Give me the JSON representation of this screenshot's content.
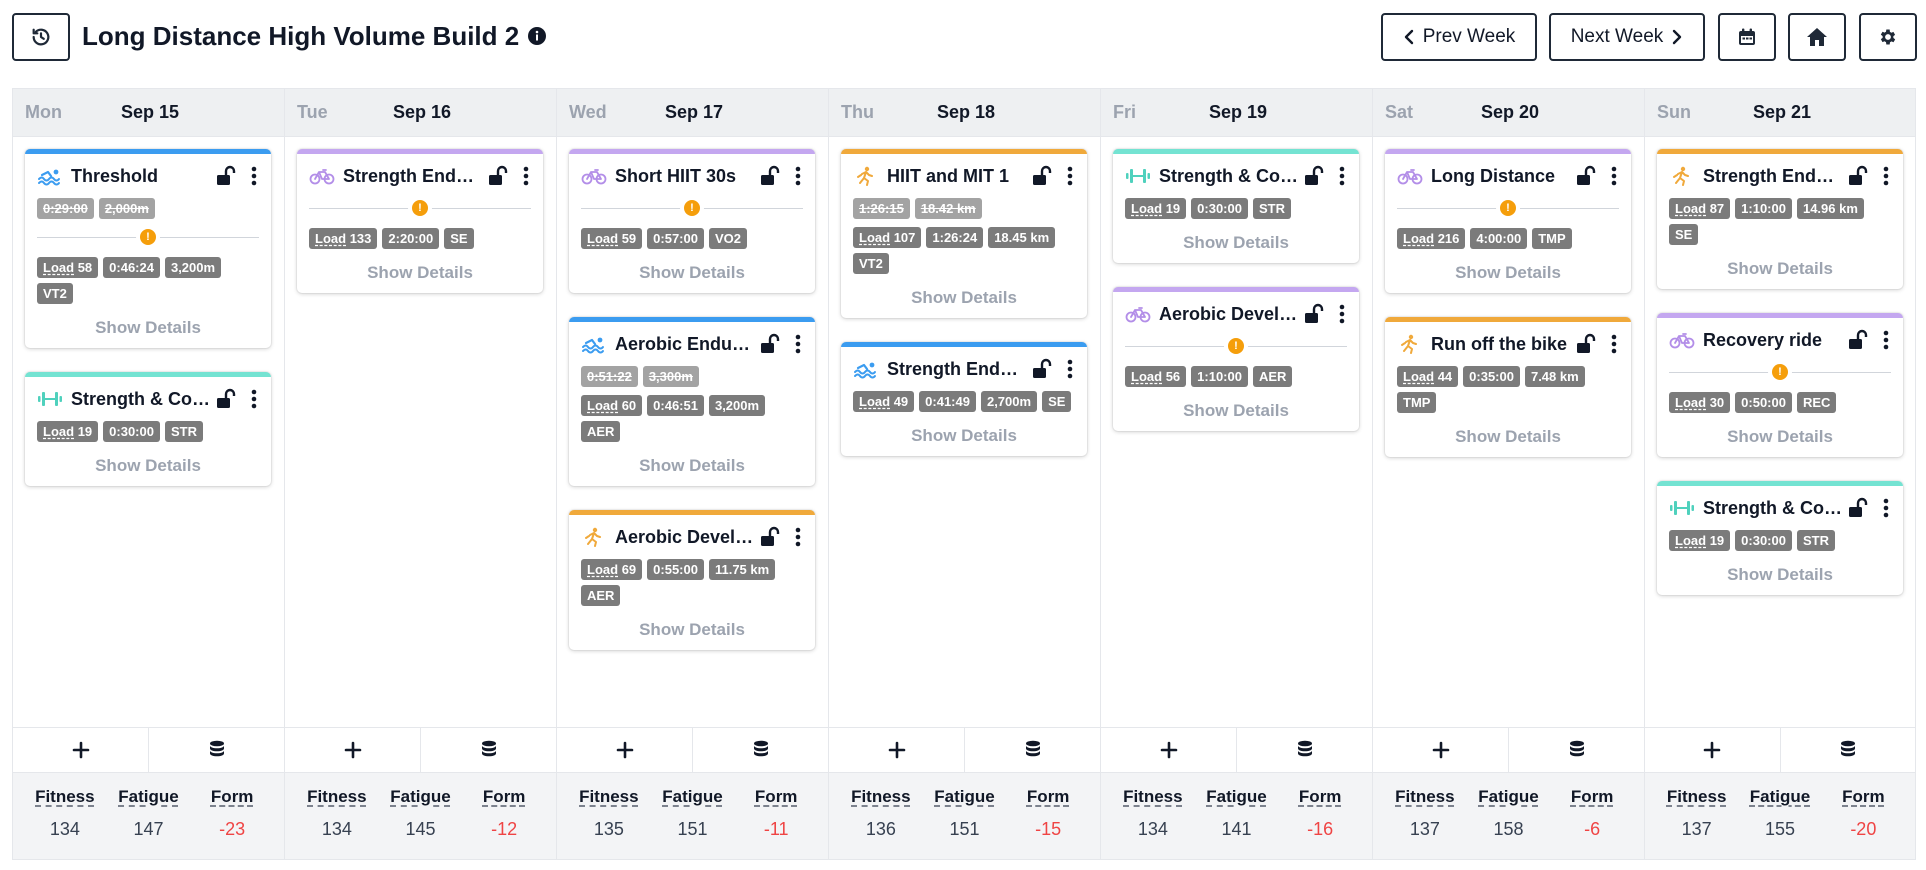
{
  "header": {
    "title": "Long Distance High Volume Build 2",
    "prev_label": "Prev Week",
    "next_label": "Next Week",
    "history_icon": "history-icon",
    "calendar_icon": "calendar-icon",
    "home_icon": "home-icon",
    "gear_icon": "gear-icon"
  },
  "colors": {
    "swim": "#3b9cf0",
    "bike": "#c4a7f0",
    "run": "#f0a93b",
    "strength": "#74e3d2",
    "negative": "#ef4444"
  },
  "labels": {
    "show_details": "Show Details",
    "fitness": "Fitness",
    "fatigue": "Fatigue",
    "form": "Form",
    "load": "Load"
  },
  "days": [
    {
      "name": "Mon",
      "date": "Sep 15",
      "fitness": "134",
      "fatigue": "147",
      "form": "-23",
      "workouts": [
        {
          "sport": "swim",
          "title": "Threshold",
          "planned": [
            "0:29:00",
            "2,000m"
          ],
          "warning": true,
          "load": "58",
          "badges": [
            "0:46:24",
            "3,200m",
            "VT2"
          ]
        },
        {
          "sport": "str",
          "title": "Strength & Conditioning",
          "planned": [],
          "warning": false,
          "load": "19",
          "badges": [
            "0:30:00",
            "STR"
          ]
        }
      ]
    },
    {
      "name": "Tue",
      "date": "Sep 16",
      "fitness": "134",
      "fatigue": "145",
      "form": "-12",
      "workouts": [
        {
          "sport": "bike",
          "title": "Strength Endurance",
          "planned": [],
          "warning": true,
          "load": "133",
          "badges": [
            "2:20:00",
            "SE"
          ]
        }
      ]
    },
    {
      "name": "Wed",
      "date": "Sep 17",
      "fitness": "135",
      "fatigue": "151",
      "form": "-11",
      "workouts": [
        {
          "sport": "bike",
          "title": "Short HIIT 30s",
          "planned": [],
          "warning": true,
          "load": "59",
          "badges": [
            "0:57:00",
            "VO2"
          ]
        },
        {
          "sport": "swim",
          "title": "Aerobic Endurance",
          "planned": [
            "0:51:22",
            "3,300m"
          ],
          "warning": false,
          "load": "60",
          "badges": [
            "0:46:51",
            "3,200m",
            "AER"
          ]
        },
        {
          "sport": "run",
          "title": "Aerobic Development",
          "planned": [],
          "warning": false,
          "load": "69",
          "badges": [
            "0:55:00",
            "11.75 km",
            "AER"
          ]
        }
      ]
    },
    {
      "name": "Thu",
      "date": "Sep 18",
      "fitness": "136",
      "fatigue": "151",
      "form": "-15",
      "workouts": [
        {
          "sport": "run",
          "title": "HIIT and MIT 1",
          "planned": [
            "1:26:15",
            "18.42 km"
          ],
          "warning": false,
          "load": "107",
          "badges": [
            "1:26:24",
            "18.45 km",
            "VT2"
          ]
        },
        {
          "sport": "swim",
          "title": "Strength Endurance",
          "planned": [],
          "warning": false,
          "load": "49",
          "badges": [
            "0:41:49",
            "2,700m",
            "SE"
          ]
        }
      ]
    },
    {
      "name": "Fri",
      "date": "Sep 19",
      "fitness": "134",
      "fatigue": "141",
      "form": "-16",
      "workouts": [
        {
          "sport": "str",
          "title": "Strength & Conditioning",
          "planned": [],
          "warning": false,
          "load": "19",
          "badges": [
            "0:30:00",
            "STR"
          ]
        },
        {
          "sport": "bike",
          "title": "Aerobic Development",
          "planned": [],
          "warning": true,
          "load": "56",
          "badges": [
            "1:10:00",
            "AER"
          ]
        }
      ]
    },
    {
      "name": "Sat",
      "date": "Sep 20",
      "fitness": "137",
      "fatigue": "158",
      "form": "-6",
      "workouts": [
        {
          "sport": "bike",
          "title": "Long Distance",
          "planned": [],
          "warning": true,
          "load": "216",
          "badges": [
            "4:00:00",
            "TMP"
          ]
        },
        {
          "sport": "run",
          "title": "Run off the bike",
          "planned": [],
          "warning": false,
          "load": "44",
          "badges": [
            "0:35:00",
            "7.48 km",
            "TMP"
          ]
        }
      ]
    },
    {
      "name": "Sun",
      "date": "Sep 21",
      "fitness": "137",
      "fatigue": "155",
      "form": "-20",
      "workouts": [
        {
          "sport": "run",
          "title": "Strength Endurance",
          "planned": [],
          "warning": false,
          "load": "87",
          "badges": [
            "1:10:00",
            "14.96 km",
            "SE"
          ]
        },
        {
          "sport": "bike",
          "title": "Recovery ride",
          "planned": [],
          "warning": true,
          "load": "30",
          "badges": [
            "0:50:00",
            "REC"
          ]
        },
        {
          "sport": "str",
          "title": "Strength & Conditioning",
          "planned": [],
          "warning": false,
          "load": "19",
          "badges": [
            "0:30:00",
            "STR"
          ]
        }
      ]
    }
  ]
}
